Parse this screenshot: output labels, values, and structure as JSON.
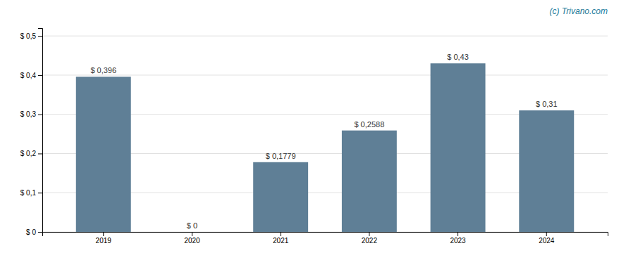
{
  "chart_data": {
    "type": "bar",
    "categories": [
      "2019",
      "2020",
      "2021",
      "2022",
      "2023",
      "2024"
    ],
    "values": [
      0.396,
      0.0,
      0.1779,
      0.2588,
      0.43,
      0.31
    ],
    "value_labels": [
      "$ 0,396",
      "$ 0",
      "$ 0,1779",
      "$ 0,2588",
      "$ 0,43",
      "$ 0,31"
    ],
    "data_labels": true,
    "color": "#5f7f96",
    "ylim": [
      0,
      0.52
    ],
    "yticks": [
      {
        "value": 0.0,
        "label": "$ 0"
      },
      {
        "value": 0.1,
        "label": "$ 0,1"
      },
      {
        "value": 0.2,
        "label": "$ 0,2"
      },
      {
        "value": 0.3,
        "label": "$ 0,3"
      },
      {
        "value": 0.4,
        "label": "$ 0,4"
      },
      {
        "value": 0.5,
        "label": "$ 0,5"
      }
    ],
    "grid": true,
    "annotations": [
      "(c) Trivano.com"
    ]
  }
}
